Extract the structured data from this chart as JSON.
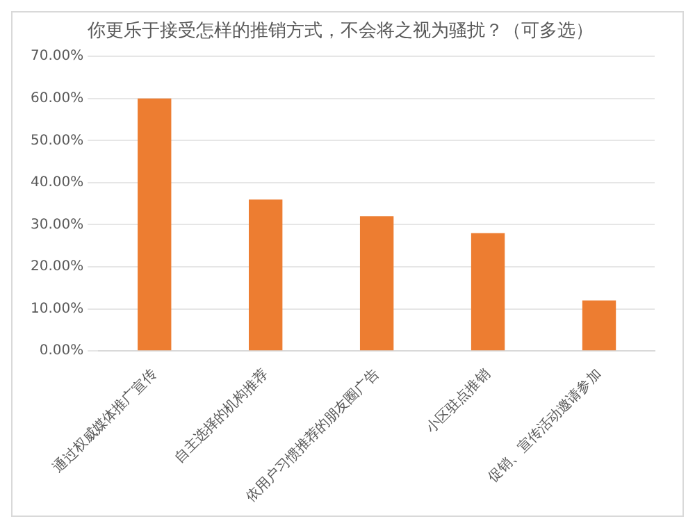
{
  "chart_data": {
    "type": "bar",
    "title": "你更乐于接受怎样的推销方式，不会将之视为骚扰？（可多选）",
    "categories": [
      "通过权威媒体推广宣传",
      "自主选择的机构推荐",
      "依用户习惯推荐的朋友圈广告",
      "小区驻点推销",
      "促销、宣传活动邀请参加"
    ],
    "values": [
      60,
      36,
      32,
      28,
      12
    ],
    "color": "#ed7d31",
    "ylim": [
      0,
      70
    ],
    "yticks": [
      {
        "value": 0,
        "label": "0.00%"
      },
      {
        "value": 10,
        "label": "10.00%"
      },
      {
        "value": 20,
        "label": "20.00%"
      },
      {
        "value": 30,
        "label": "30.00%"
      },
      {
        "value": 40,
        "label": "40.00%"
      },
      {
        "value": 50,
        "label": "50.00%"
      },
      {
        "value": 60,
        "label": "60.00%"
      },
      {
        "value": 70,
        "label": "70.00%"
      }
    ],
    "grid": "y",
    "legend": false
  }
}
